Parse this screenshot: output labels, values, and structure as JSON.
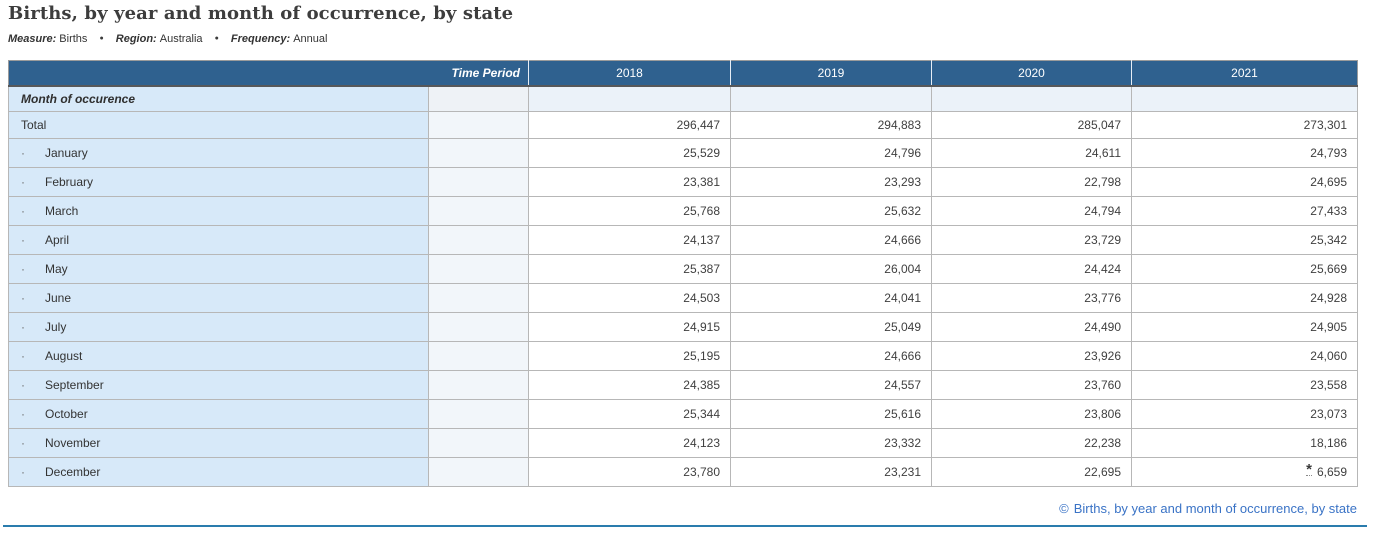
{
  "page": {
    "title": "Births, by year and month of occurrence, by state",
    "meta_separator": "●",
    "meta": [
      {
        "label": "Measure:",
        "value": "Births"
      },
      {
        "label": "Region:",
        "value": "Australia"
      },
      {
        "label": "Frequency:",
        "value": "Annual"
      }
    ]
  },
  "table": {
    "header": {
      "time_period_label": "Time Period",
      "years": [
        "2018",
        "2019",
        "2020",
        "2021"
      ]
    },
    "section_label": "Month of occurence",
    "indent_marker": "·",
    "footnote_marker": "*",
    "rows": [
      {
        "label": "Total",
        "indent": false,
        "values": [
          "296,447",
          "294,883",
          "285,047",
          "273,301"
        ]
      },
      {
        "label": "January",
        "indent": true,
        "values": [
          "25,529",
          "24,796",
          "24,611",
          "24,793"
        ]
      },
      {
        "label": "February",
        "indent": true,
        "values": [
          "23,381",
          "23,293",
          "22,798",
          "24,695"
        ]
      },
      {
        "label": "March",
        "indent": true,
        "values": [
          "25,768",
          "25,632",
          "24,794",
          "27,433"
        ]
      },
      {
        "label": "April",
        "indent": true,
        "values": [
          "24,137",
          "24,666",
          "23,729",
          "25,342"
        ]
      },
      {
        "label": "May",
        "indent": true,
        "values": [
          "25,387",
          "26,004",
          "24,424",
          "25,669"
        ]
      },
      {
        "label": "June",
        "indent": true,
        "values": [
          "24,503",
          "24,041",
          "23,776",
          "24,928"
        ]
      },
      {
        "label": "July",
        "indent": true,
        "values": [
          "24,915",
          "25,049",
          "24,490",
          "24,905"
        ]
      },
      {
        "label": "August",
        "indent": true,
        "values": [
          "25,195",
          "24,666",
          "23,926",
          "24,060"
        ]
      },
      {
        "label": "September",
        "indent": true,
        "values": [
          "24,385",
          "24,557",
          "23,760",
          "23,558"
        ]
      },
      {
        "label": "October",
        "indent": true,
        "values": [
          "25,344",
          "25,616",
          "23,806",
          "23,073"
        ]
      },
      {
        "label": "November",
        "indent": true,
        "values": [
          "24,123",
          "23,332",
          "22,238",
          "18,186"
        ]
      },
      {
        "label": "December",
        "indent": true,
        "values": [
          "23,780",
          "23,231",
          "22,695",
          "6,659"
        ],
        "flags": [
          null,
          null,
          null,
          "*"
        ]
      }
    ]
  },
  "footer": {
    "copyright_symbol": "©",
    "link_text": "Births, by year and month of occurrence, by state"
  },
  "colors": {
    "header_bg": "#2f618f",
    "row_label_bg": "#d7e9f9",
    "section_val_bg": "#ebf2f9",
    "accent_line": "#2a7cad",
    "link": "#3a73c6"
  }
}
